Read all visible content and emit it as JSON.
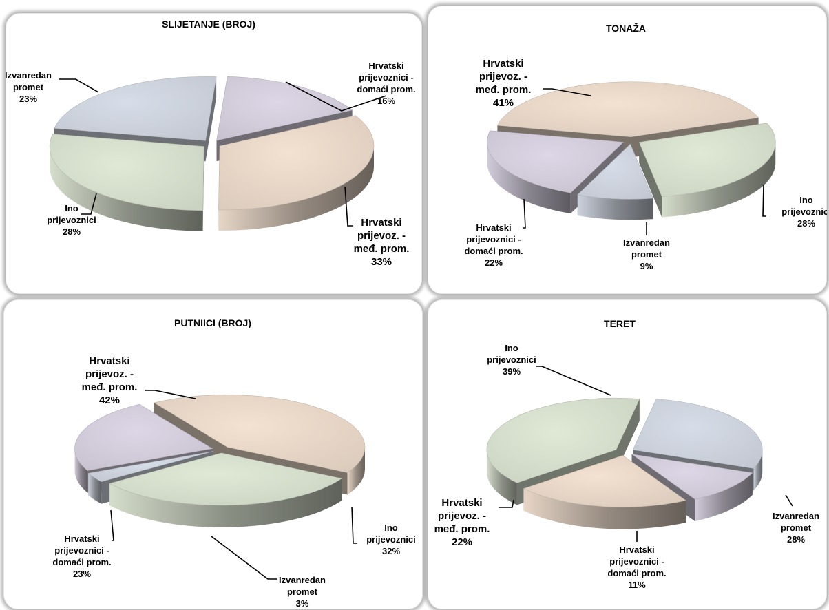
{
  "colors": {
    "domaci": "#ddd6e6",
    "medjunarodni": "#f3e1d1",
    "ino": "#e0e9d6",
    "izvanredan": "#d7dde8",
    "frame": "#b9b9b9",
    "leader": "#000000"
  },
  "chart_data": [
    {
      "type": "pie",
      "title": "SLIJETANJE (BROJ)",
      "slices": [
        {
          "lines": [
            "Hrvatski",
            "prijevoznici -",
            "domaći prom."
          ],
          "pct": "16%",
          "value": 16
        },
        {
          "lines": [
            "Hrvatski",
            "prijevoz. -",
            "međ. prom."
          ],
          "pct": "33%",
          "value": 33
        },
        {
          "lines": [
            "Ino",
            "prijevoznici"
          ],
          "pct": "28%",
          "value": 28
        },
        {
          "lines": [
            "Izvanredan",
            "promet"
          ],
          "pct": "23%",
          "value": 23
        }
      ]
    },
    {
      "type": "pie",
      "title": "TONAŽA",
      "slices": [
        {
          "lines": [
            "Hrvatski",
            "prijevoz. -",
            "međ. prom."
          ],
          "pct": "41%",
          "value": 41
        },
        {
          "lines": [
            "Ino",
            "prijevoznici"
          ],
          "pct": "28%",
          "value": 28
        },
        {
          "lines": [
            "Izvanredan",
            "promet"
          ],
          "pct": "9%",
          "value": 9
        },
        {
          "lines": [
            "Hrvatski",
            "prijevoznici -",
            "domaći prom."
          ],
          "pct": "22%",
          "value": 22
        }
      ]
    },
    {
      "type": "pie",
      "title": "PUTNIICI (BROJ)",
      "slices": [
        {
          "lines": [
            "Hrvatski",
            "prijevoz. -",
            "međ. prom."
          ],
          "pct": "42%",
          "value": 42
        },
        {
          "lines": [
            "Ino",
            "prijevoznici"
          ],
          "pct": "32%",
          "value": 32
        },
        {
          "lines": [
            "Izvanredan",
            "promet"
          ],
          "pct": "3%",
          "value": 3
        },
        {
          "lines": [
            "Hrvatski",
            "prijevoznici -",
            "domaći prom."
          ],
          "pct": "23%",
          "value": 23
        }
      ]
    },
    {
      "type": "pie",
      "title": "TERET",
      "slices": [
        {
          "lines": [
            "Ino",
            "prijevoznici"
          ],
          "pct": "39%",
          "value": 39
        },
        {
          "lines": [
            "Izvanredan",
            "promet"
          ],
          "pct": "28%",
          "value": 28
        },
        {
          "lines": [
            "Hrvatski",
            "prijevoznici -",
            "domaći prom."
          ],
          "pct": "11%",
          "value": 11
        },
        {
          "lines": [
            "Hrvatski",
            "prijevoz. -",
            "međ. prom."
          ],
          "pct": "22%",
          "value": 22
        }
      ]
    }
  ]
}
